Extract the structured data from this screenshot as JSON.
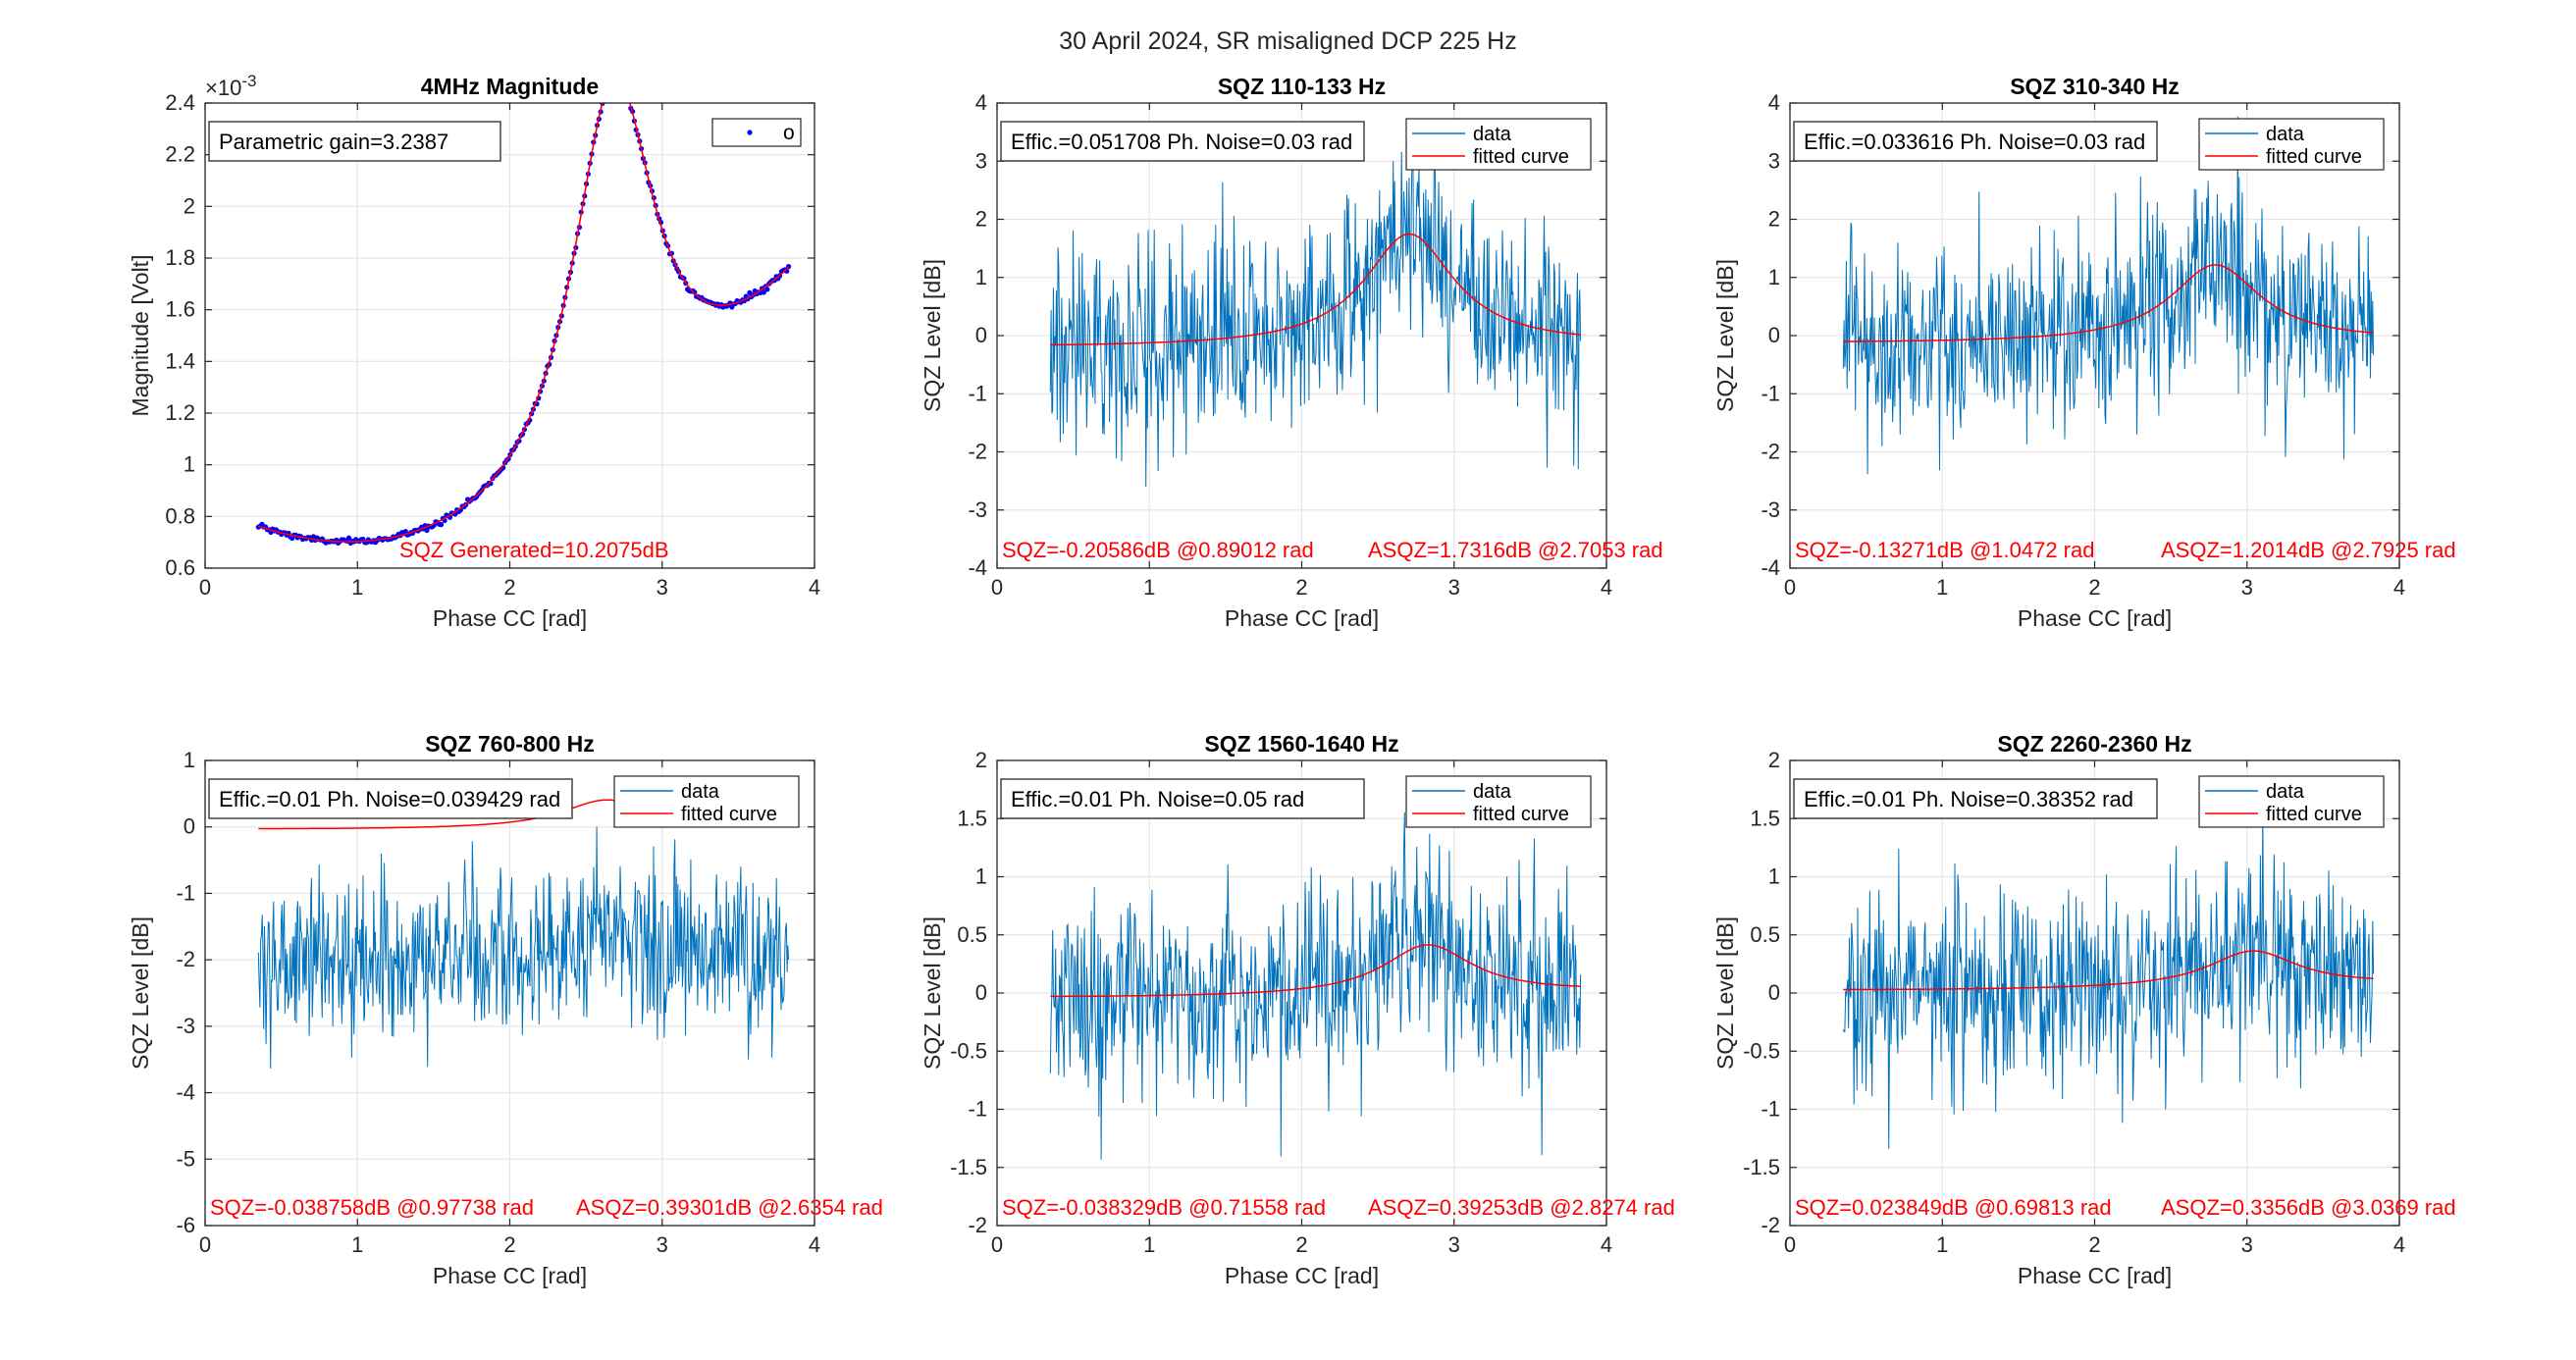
{
  "figure": {
    "title": "30 April 2024, SR misaligned DCP 225 Hz",
    "colors": {
      "data": "#0072bd",
      "fit": "#ff0000",
      "marker": "#0000ff",
      "annotation": "#ff0000",
      "grid": "#e6e6e6"
    }
  },
  "chart_data": [
    {
      "type": "scatter",
      "title": "4MHz Magnitude",
      "xlabel": "Phase CC [rad]",
      "ylabel": "Magnitude [Volt]",
      "xlim": [
        0,
        4
      ],
      "ylim": [
        0.6,
        2.4
      ],
      "x_ticks": [
        0,
        1,
        2,
        3,
        4
      ],
      "y_ticks": [
        0.6,
        0.8,
        1,
        1.2,
        1.4,
        1.6,
        1.8,
        2,
        2.2,
        2.4
      ],
      "y_tick_labels": [
        "0.6",
        "0.8",
        "1",
        "1.2",
        "1.4",
        "1.6",
        "1.8",
        "2",
        "2.2",
        "2.4"
      ],
      "y_exponent": "-3",
      "y_exponent_prefix": "×10",
      "grid": true,
      "info_box": "Parametric gain=3.2387",
      "legend": {
        "entries": [
          "o"
        ],
        "placement": "top-right"
      },
      "annotation": "SQZ Generated=10.2075dB",
      "series": [
        {
          "name": "o",
          "kind": "markers",
          "x_range": [
            0.35,
            3.83
          ],
          "point_count": 300,
          "model": {
            "baseline": 0.643,
            "center": 1.15,
            "curvature": 0.14,
            "peak_x": 2.68,
            "peak_height": 1.53,
            "half_width": 0.33,
            "min_curve": "quadratic",
            "peak_curve": "lorentzian"
          }
        },
        {
          "name": "",
          "kind": "line",
          "x_range": [
            0.35,
            3.83
          ],
          "model": {
            "baseline": 0.643,
            "center": 1.15,
            "curvature": 0.14,
            "peak_x": 2.68,
            "peak_height": 1.53,
            "half_width": 0.33,
            "min_curve": "quadratic",
            "peak_curve": "lorentzian"
          }
        }
      ]
    },
    {
      "type": "line",
      "title": "SQZ 110-133 Hz",
      "xlabel": "Phase CC [rad]",
      "ylabel": "SQZ Level [dB]",
      "xlim": [
        0,
        4
      ],
      "ylim": [
        -4,
        4
      ],
      "x_ticks": [
        0,
        1,
        2,
        3,
        4
      ],
      "y_ticks": [
        -4,
        -3,
        -2,
        -1,
        0,
        1,
        2,
        3,
        4
      ],
      "y_tick_labels": [
        "-4",
        "-3",
        "-2",
        "-1",
        "0",
        "1",
        "2",
        "3",
        "4"
      ],
      "grid": true,
      "info_box": "Effic.=0.051708  Ph. Noise=0.03 rad",
      "legend": {
        "entries": [
          "data",
          "fitted curve"
        ],
        "placement": "top-right"
      },
      "annotations": {
        "sqz": "SQZ=-0.20586dB  @0.89012 rad",
        "asqz": "ASQZ=1.7316dB  @2.7053 rad"
      },
      "sqz_min": {
        "value": -0.20586,
        "phase": 0.89012
      },
      "asqz_max": {
        "value": 1.7316,
        "phase": 2.7053
      },
      "series": [
        {
          "name": "data",
          "kind": "noisy",
          "x_range": [
            0.35,
            3.83
          ],
          "point_count": 700,
          "noise_sd": 0.85
        },
        {
          "name": "fitted curve",
          "kind": "fit",
          "x_range": [
            0.35,
            3.83
          ]
        }
      ]
    },
    {
      "type": "line",
      "title": "SQZ 310-340 Hz",
      "xlabel": "Phase CC [rad]",
      "ylabel": "SQZ Level [dB]",
      "xlim": [
        0,
        4
      ],
      "ylim": [
        -4,
        4
      ],
      "x_ticks": [
        0,
        1,
        2,
        3,
        4
      ],
      "y_ticks": [
        -4,
        -3,
        -2,
        -1,
        0,
        1,
        2,
        3,
        4
      ],
      "y_tick_labels": [
        "-4",
        "-3",
        "-2",
        "-1",
        "0",
        "1",
        "2",
        "3",
        "4"
      ],
      "grid": true,
      "info_box": "Effic.=0.033616  Ph. Noise=0.03 rad",
      "legend": {
        "entries": [
          "data",
          "fitted curve"
        ],
        "placement": "top-right"
      },
      "annotations": {
        "sqz": "SQZ=-0.13271dB  @1.0472 rad",
        "asqz": "ASQZ=1.2014dB  @2.7925 rad"
      },
      "sqz_min": {
        "value": -0.13271,
        "phase": 1.0472
      },
      "asqz_max": {
        "value": 1.2014,
        "phase": 2.7925
      },
      "series": [
        {
          "name": "data",
          "kind": "noisy",
          "x_range": [
            0.35,
            3.83
          ],
          "point_count": 700,
          "noise_sd": 0.85
        },
        {
          "name": "fitted curve",
          "kind": "fit",
          "x_range": [
            0.35,
            3.83
          ]
        }
      ]
    },
    {
      "type": "line",
      "title": "SQZ 760-800 Hz",
      "xlabel": "Phase CC [rad]",
      "ylabel": "SQZ Level [dB]",
      "xlim": [
        0,
        4
      ],
      "ylim": [
        -6,
        1
      ],
      "x_ticks": [
        0,
        1,
        2,
        3,
        4
      ],
      "y_ticks": [
        -6,
        -5,
        -4,
        -3,
        -2,
        -1,
        0,
        1
      ],
      "y_tick_labels": [
        "-6",
        "-5",
        "-4",
        "-3",
        "-2",
        "-1",
        "0",
        "1"
      ],
      "grid": true,
      "info_box": "Effic.=0.01  Ph. Noise=0.039429 rad",
      "legend": {
        "entries": [
          "data",
          "fitted curve"
        ],
        "placement": "top-right"
      },
      "annotations": {
        "sqz": "SQZ=-0.038758dB  @0.97738 rad",
        "asqz": "ASQZ=0.39301dB  @2.6354 rad"
      },
      "sqz_min": {
        "value": -0.038758,
        "phase": 0.97738
      },
      "asqz_max": {
        "value": 0.39301,
        "phase": 2.6354
      },
      "series": [
        {
          "name": "data",
          "kind": "noisy",
          "x_range": [
            0.35,
            3.83
          ],
          "point_count": 700,
          "noise_sd": 0.6,
          "data_offset": -2.0
        },
        {
          "name": "fitted curve",
          "kind": "fit",
          "x_range": [
            0.35,
            2.75
          ]
        }
      ]
    },
    {
      "type": "line",
      "title": "SQZ 1560-1640 Hz",
      "xlabel": "Phase CC [rad]",
      "ylabel": "SQZ Level [dB]",
      "xlim": [
        0,
        4
      ],
      "ylim": [
        -2,
        2
      ],
      "x_ticks": [
        0,
        1,
        2,
        3,
        4
      ],
      "y_ticks": [
        -2,
        -1.5,
        -1,
        -0.5,
        0,
        0.5,
        1,
        1.5,
        2
      ],
      "y_tick_labels": [
        "-2",
        "-1.5",
        "-1",
        "-0.5",
        "0",
        "0.5",
        "1",
        "1.5",
        "2"
      ],
      "grid": true,
      "info_box": "Effic.=0.01  Ph. Noise=0.05 rad",
      "legend": {
        "entries": [
          "data",
          "fitted curve"
        ],
        "placement": "top-right"
      },
      "annotations": {
        "sqz": "SQZ=-0.038329dB  @0.71558 rad",
        "asqz": "ASQZ=0.39253dB  @2.8274 rad"
      },
      "sqz_min": {
        "value": -0.038329,
        "phase": 0.71558
      },
      "asqz_max": {
        "value": 0.39253,
        "phase": 2.8274
      },
      "series": [
        {
          "name": "data",
          "kind": "noisy",
          "x_range": [
            0.35,
            3.83
          ],
          "point_count": 700,
          "noise_sd": 0.42
        },
        {
          "name": "fitted curve",
          "kind": "fit",
          "x_range": [
            0.35,
            3.83
          ]
        }
      ]
    },
    {
      "type": "line",
      "title": "SQZ 2260-2360 Hz",
      "xlabel": "Phase CC [rad]",
      "ylabel": "SQZ Level [dB]",
      "xlim": [
        0,
        4
      ],
      "ylim": [
        -2,
        2
      ],
      "x_ticks": [
        0,
        1,
        2,
        3,
        4
      ],
      "y_ticks": [
        -2,
        -1.5,
        -1,
        -0.5,
        0,
        0.5,
        1,
        1.5,
        2
      ],
      "y_tick_labels": [
        "-2",
        "-1.5",
        "-1",
        "-0.5",
        "0",
        "0.5",
        "1",
        "1.5",
        "2"
      ],
      "grid": true,
      "info_box": "Effic.=0.01  Ph. Noise=0.38352 rad",
      "legend": {
        "entries": [
          "data",
          "fitted curve"
        ],
        "placement": "top-right"
      },
      "annotations": {
        "sqz": "SQZ=0.023849dB  @0.69813 rad",
        "asqz": "ASQZ=0.3356dB  @3.0369 rad"
      },
      "sqz_min": {
        "value": 0.023849,
        "phase": 0.69813
      },
      "asqz_max": {
        "value": 0.3356,
        "phase": 3.0369
      },
      "series": [
        {
          "name": "data",
          "kind": "noisy",
          "x_range": [
            0.35,
            3.83
          ],
          "point_count": 700,
          "noise_sd": 0.42
        },
        {
          "name": "fitted curve",
          "kind": "fit",
          "x_range": [
            0.35,
            3.83
          ]
        }
      ]
    }
  ]
}
